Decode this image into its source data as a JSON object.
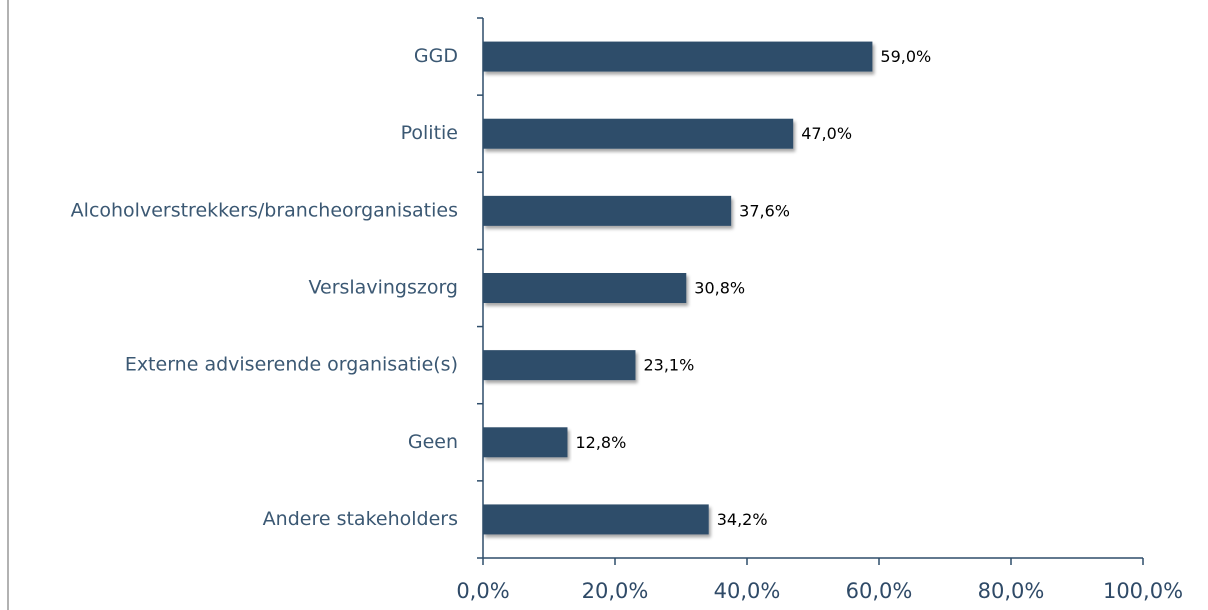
{
  "chart_data": {
    "type": "bar",
    "categories": [
      "GGD",
      "Politie",
      "Alcoholverstrekkers/brancheorganisaties",
      "Verslavingszorg",
      "Externe adviserende organisatie(s)",
      "Geen",
      "Andere stakeholders"
    ],
    "values": [
      59.0,
      47.0,
      37.6,
      30.8,
      23.1,
      12.8,
      34.2
    ],
    "value_labels": [
      "59,0%",
      "47,0%",
      "37,6%",
      "30,8%",
      "23,1%",
      "12,8%",
      "34,2%"
    ],
    "color": "#2e4d6a",
    "xlim": [
      0,
      100
    ],
    "xticks": [
      {
        "value": 0,
        "label": "0,0%"
      },
      {
        "value": 20,
        "label": "20,0%"
      },
      {
        "value": 40,
        "label": "40,0%"
      },
      {
        "value": 60,
        "label": "60,0%"
      },
      {
        "value": 80,
        "label": "80,0%"
      },
      {
        "value": 100,
        "label": "100,0%"
      }
    ]
  }
}
